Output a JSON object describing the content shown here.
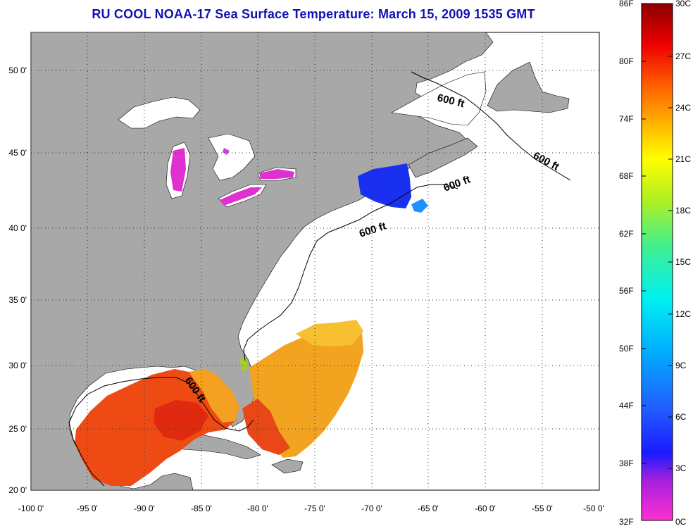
{
  "title": "RU COOL  NOAA-17  Sea Surface Temperature:  March 15, 2009 1535 GMT",
  "map": {
    "lon_labels": [
      "-100 0'",
      "-95 0'",
      "-90 0'",
      "-85 0'",
      "-80 0'",
      "-75 0'",
      "-70 0'",
      "-65 0'",
      "-60 0'",
      "-55 0'",
      "-50 0'"
    ],
    "lat_labels": [
      "50 0'",
      "45 0'",
      "40 0'",
      "35 0'",
      "30 0'",
      "25 0'",
      "20 0'"
    ],
    "contour_label": "600 ft",
    "colors": {
      "land": "#a8a8a8",
      "water": "#ffffff",
      "grid": "#222222"
    }
  },
  "colorbar": {
    "fahrenheit_labels": [
      "86F",
      "80F",
      "74F",
      "68F",
      "62F",
      "56F",
      "50F",
      "44F",
      "38F",
      "32F"
    ],
    "celsius_labels": [
      "30C",
      "27C",
      "24C",
      "21C",
      "18C",
      "15C",
      "12C",
      "9C",
      "6C",
      "3C",
      "0C"
    ],
    "range_c": [
      0,
      30
    ],
    "range_f": [
      32,
      86
    ]
  }
}
